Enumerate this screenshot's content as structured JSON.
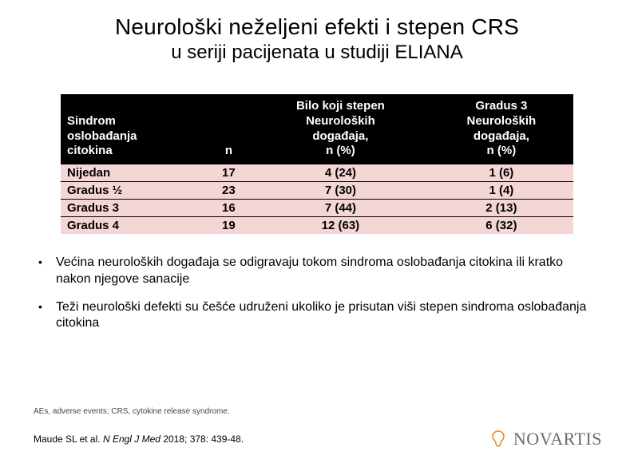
{
  "title": "Neurološki neželjeni efekti i stepen CRS",
  "subtitle": "u seriji pacijenata u studiji ELIANA",
  "table": {
    "columns": [
      "Sindrom oslobađanja citokina",
      "n",
      "Bilo koji stepen Neuroloških događaja, n (%)",
      "Gradus 3 Neuroloških događaja, n (%)"
    ],
    "rows": [
      [
        "Nijedan",
        "17",
        "4 (24)",
        "1 (6)"
      ],
      [
        "Gradus ½",
        "23",
        "7 (30)",
        "1 (4)"
      ],
      [
        "Gradus 3",
        "16",
        "7 (44)",
        "2 (13)"
      ],
      [
        "Gradus 4",
        "19",
        "12 (63)",
        "6 (32)"
      ]
    ],
    "header_bg": "#000000",
    "header_color": "#ffffff",
    "row_bg": "#f4d7d4",
    "border_color": "#000000"
  },
  "bullets": [
    "Većina neuroloških događaja se odigravaju tokom sindroma oslobađanja citokina ili kratko nakon njegove sanacije",
    "Teži neurološki defekti su češće udruženi ukoliko je prisutan viši stepen sindroma oslobađanja citokina"
  ],
  "footnote": "AEs, adverse events; CRS, cytokine release syndrome.",
  "citation": {
    "authors": "Maude SL et al.",
    "journal": "N Engl J Med",
    "rest": "2018; 378: 439-48."
  },
  "logo": {
    "text": "NOVARTIS",
    "color": "#6b6b6b",
    "mark_color": "#e38b2e"
  }
}
